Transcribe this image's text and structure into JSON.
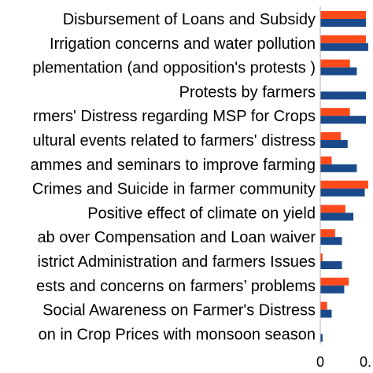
{
  "chart_data": {
    "type": "bar",
    "orientation": "horizontal",
    "categories": [
      "Disbursement of Loans and Subsidy",
      "Irrigation concerns and water pollution",
      "plementation (and opposition's protests )",
      "Protests by farmers",
      "rmers' Distress regarding MSP for Crops",
      "ultural events related to farmers' distress",
      "ammes and seminars to improve farming",
      "Crimes and Suicide in farmer community",
      "Positive effect of climate on yield",
      "ab over Compensation and Loan waiver",
      "istrict Administration and farmers Issues",
      "ests and concerns on farmers’ problems",
      "Social Awareness on Farmer's Distress",
      "on in Crop Prices with monsoon season"
    ],
    "series": [
      {
        "color": "#ff4a1c",
        "values": [
          0.4,
          0.4,
          0.26,
          0.0,
          0.26,
          0.18,
          0.1,
          0.42,
          0.22,
          0.13,
          0.02,
          0.25,
          0.06,
          0.0
        ]
      },
      {
        "color": "#1a4a8a",
        "values": [
          0.4,
          0.42,
          0.32,
          0.4,
          0.4,
          0.24,
          0.32,
          0.39,
          0.29,
          0.19,
          0.19,
          0.21,
          0.1,
          0.02
        ]
      }
    ],
    "x_ticks": [
      "0",
      "0."
    ],
    "grid": false,
    "legend": "none"
  }
}
